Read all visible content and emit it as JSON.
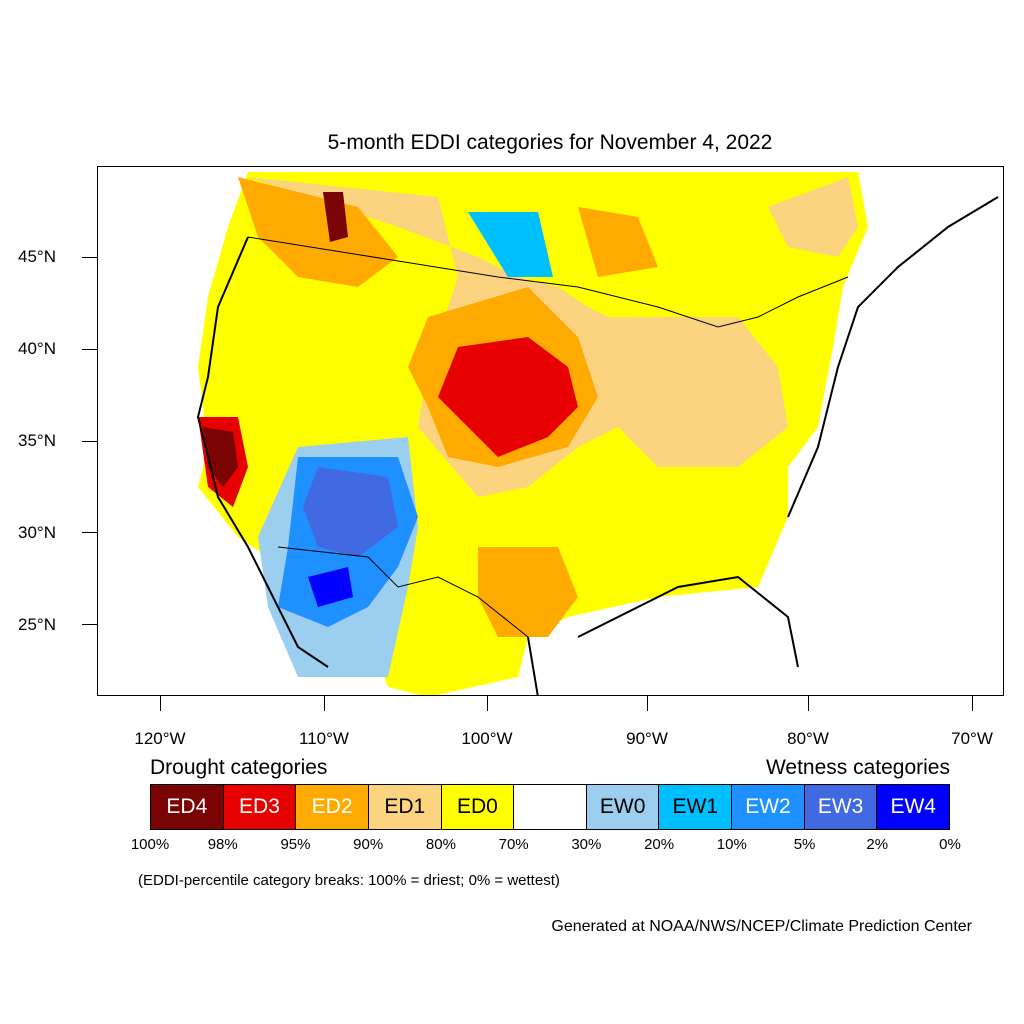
{
  "title": "5-month EDDI categories for November 4, 2022",
  "lat_labels": [
    "45°N",
    "40°N",
    "35°N",
    "30°N",
    "25°N"
  ],
  "lon_labels": [
    "120°W",
    "110°W",
    "100°W",
    "90°W",
    "80°W",
    "70°W"
  ],
  "legend": {
    "drought_heading": "Drought categories",
    "wetness_heading": "Wetness categories",
    "categories": [
      {
        "label": "ED4",
        "color": "#7a0403",
        "text_color": "#ffffff"
      },
      {
        "label": "ED3",
        "color": "#e60000",
        "text_color": "#ffffff"
      },
      {
        "label": "ED2",
        "color": "#ffaa00",
        "text_color": "#ffffff"
      },
      {
        "label": "ED1",
        "color": "#fcd37f",
        "text_color": "#000000"
      },
      {
        "label": "ED0",
        "color": "#ffff00",
        "text_color": "#000000"
      },
      {
        "label": "",
        "color": "#ffffff",
        "text_color": "#000000"
      },
      {
        "label": "EW0",
        "color": "#9ccef0",
        "text_color": "#000000"
      },
      {
        "label": "EW1",
        "color": "#00bfff",
        "text_color": "#000000"
      },
      {
        "label": "EW2",
        "color": "#1e90ff",
        "text_color": "#ffffff"
      },
      {
        "label": "EW3",
        "color": "#4169e1",
        "text_color": "#ffffff"
      },
      {
        "label": "EW4",
        "color": "#0000ff",
        "text_color": "#ffffff"
      }
    ],
    "percent_breaks": [
      "100%",
      "98%",
      "95%",
      "90%",
      "80%",
      "70%",
      "30%",
      "20%",
      "10%",
      "5%",
      "2%",
      "0%"
    ]
  },
  "note": "(EDDI-percentile category breaks: 100% = driest; 0% = wettest)",
  "credit": "Generated at NOAA/NWS/NCEP/Climate Prediction Center"
}
